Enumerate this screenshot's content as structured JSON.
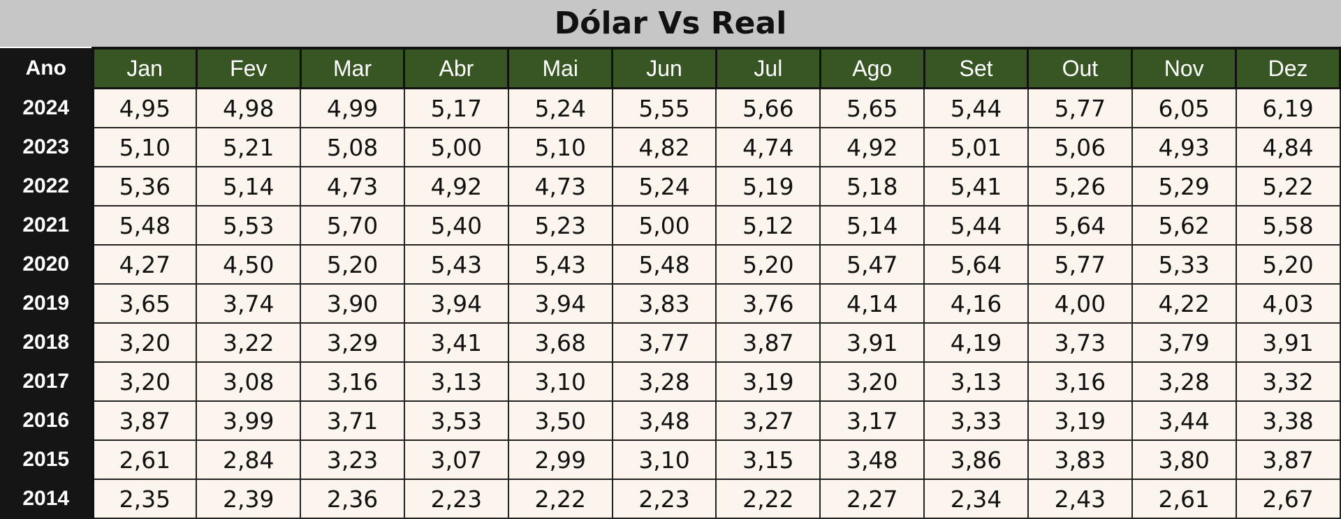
{
  "title": "Dólar Vs Real",
  "table": {
    "header": [
      "Ano",
      "Jan",
      "Fev",
      "Mar",
      "Abr",
      "Mai",
      "Jun",
      "Jul",
      "Ago",
      "Set",
      "Out",
      "Nov",
      "Dez"
    ],
    "rows": [
      [
        "2024",
        "4,95",
        "4,98",
        "4,99",
        "5,17",
        "5,24",
        "5,55",
        "5,66",
        "5,65",
        "5,44",
        "5,77",
        "6,05",
        "6,19"
      ],
      [
        "2023",
        "5,10",
        "5,21",
        "5,08",
        "5,00",
        "5,10",
        "4,82",
        "4,74",
        "4,92",
        "5,01",
        "5,06",
        "4,93",
        "4,84"
      ],
      [
        "2022",
        "5,36",
        "5,14",
        "4,73",
        "4,92",
        "4,73",
        "5,24",
        "5,19",
        "5,18",
        "5,41",
        "5,26",
        "5,29",
        "5,22"
      ],
      [
        "2021",
        "5,48",
        "5,53",
        "5,70",
        "5,40",
        "5,23",
        "5,00",
        "5,12",
        "5,14",
        "5,44",
        "5,64",
        "5,62",
        "5,58"
      ],
      [
        "2020",
        "4,27",
        "4,50",
        "5,20",
        "5,43",
        "5,43",
        "5,48",
        "5,20",
        "5,47",
        "5,64",
        "5,77",
        "5,33",
        "5,20"
      ],
      [
        "2019",
        "3,65",
        "3,74",
        "3,90",
        "3,94",
        "3,94",
        "3,83",
        "3,76",
        "4,14",
        "4,16",
        "4,00",
        "4,22",
        "4,03"
      ],
      [
        "2018",
        "3,20",
        "3,22",
        "3,29",
        "3,41",
        "3,68",
        "3,77",
        "3,87",
        "3,91",
        "4,19",
        "3,73",
        "3,79",
        "3,91"
      ],
      [
        "2017",
        "3,20",
        "3,08",
        "3,16",
        "3,13",
        "3,10",
        "3,28",
        "3,19",
        "3,20",
        "3,13",
        "3,16",
        "3,28",
        "3,32"
      ],
      [
        "2016",
        "3,87",
        "3,99",
        "3,71",
        "3,53",
        "3,50",
        "3,48",
        "3,27",
        "3,17",
        "3,33",
        "3,19",
        "3,44",
        "3,38"
      ],
      [
        "2015",
        "2,61",
        "2,84",
        "3,23",
        "3,07",
        "2,99",
        "3,10",
        "3,15",
        "3,48",
        "3,86",
        "3,83",
        "3,80",
        "3,87"
      ],
      [
        "2014",
        "2,35",
        "2,39",
        "2,36",
        "2,23",
        "2,22",
        "2,23",
        "2,22",
        "2,27",
        "2,34",
        "2,43",
        "2,61",
        "2,67"
      ]
    ]
  }
}
